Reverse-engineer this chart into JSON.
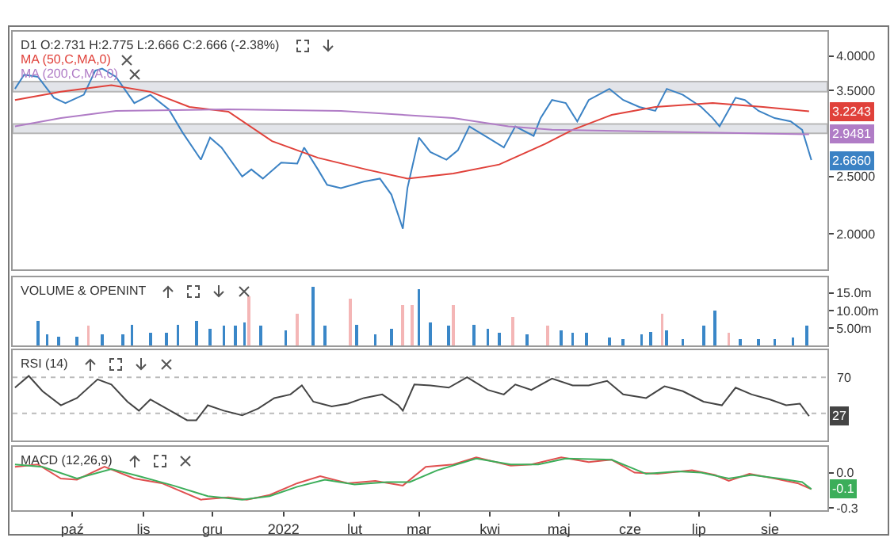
{
  "chart_data": [
    {
      "type": "line",
      "title": "D1 O:2.731 H:2.775 L:2.666 C:2.666 (-2.38%)",
      "log": true,
      "legend": "top left",
      "tick_labels": "y",
      "xlim": [
        "2021-09-05",
        "2022-08-26"
      ],
      "ylim": [
        1.74,
        4.4
      ],
      "yticks": [
        {
          "value": 2,
          "label": "2.0000"
        },
        {
          "value": 2.5,
          "label": "2.5000"
        },
        {
          "value": 3.5,
          "label": "3.5000"
        },
        {
          "value": 4,
          "label": "4.0000"
        }
      ],
      "bands": [
        {
          "axis": "y",
          "from": 2.96,
          "to": 3.07,
          "color": "#d6dae0"
        },
        {
          "axis": "y",
          "from": 3.48,
          "to": 3.62,
          "color": "#d6dae0"
        }
      ],
      "series": [
        {
          "color": "#3b82c4",
          "x": [
            "2021-09-06",
            "2021-09-10",
            "2021-09-16",
            "2021-09-23",
            "2021-09-28",
            "2021-10-06",
            "2021-10-11",
            "2021-10-14",
            "2021-10-20",
            "2021-10-28",
            "2021-11-04",
            "2021-11-12",
            "2021-11-18",
            "2021-11-26",
            "2021-11-30",
            "2021-12-05",
            "2021-12-14",
            "2021-12-18",
            "2021-12-23",
            "2021-12-31",
            "2022-01-07",
            "2022-01-10",
            "2022-01-16",
            "2022-01-20",
            "2022-01-26",
            "2022-02-05",
            "2022-02-12",
            "2022-02-17",
            "2022-02-22",
            "2022-02-24",
            "2022-03-01",
            "2022-03-06",
            "2022-03-13",
            "2022-03-18",
            "2022-03-23",
            "2022-03-31",
            "2022-04-07",
            "2022-04-12",
            "2022-04-20",
            "2022-04-23",
            "2022-04-28",
            "2022-05-04",
            "2022-05-09",
            "2022-05-14",
            "2022-05-23",
            "2022-05-29",
            "2022-06-05",
            "2022-06-12",
            "2022-06-17",
            "2022-06-24",
            "2022-07-02",
            "2022-07-07",
            "2022-07-10",
            "2022-07-17",
            "2022-07-21",
            "2022-07-27",
            "2022-08-03",
            "2022-08-10",
            "2022-08-15",
            "2022-08-19"
          ],
          "values": [
            3.52,
            3.72,
            3.69,
            3.4,
            3.33,
            3.44,
            3.78,
            3.81,
            3.69,
            3.33,
            3.44,
            3.25,
            2.97,
            2.67,
            2.91,
            2.8,
            2.5,
            2.57,
            2.48,
            2.64,
            2.63,
            2.8,
            2.57,
            2.42,
            2.39,
            2.45,
            2.48,
            2.33,
            2.04,
            2.39,
            2.91,
            2.75,
            2.67,
            2.77,
            3.04,
            2.91,
            2.8,
            3.04,
            2.93,
            3.14,
            3.37,
            3.33,
            3.1,
            3.37,
            3.52,
            3.37,
            3.28,
            3.23,
            3.52,
            3.44,
            3.28,
            3.14,
            3.04,
            3.4,
            3.37,
            3.23,
            3.14,
            3.1,
            3.0,
            2.666
          ],
          "value_labels": [
            null,
            null,
            null,
            null,
            null,
            null,
            null,
            null,
            null,
            null,
            null,
            null,
            null,
            null,
            null,
            null,
            null,
            null,
            null,
            null,
            null,
            null,
            null,
            null,
            null,
            null,
            null,
            null,
            null,
            null,
            null,
            null,
            null,
            null,
            null,
            null,
            null,
            null,
            null,
            null,
            null,
            null,
            null,
            null,
            null,
            null,
            null,
            null,
            null,
            null,
            null,
            null,
            null,
            null,
            null,
            null,
            null,
            null,
            null,
            "2.6660"
          ]
        },
        {
          "name": "MA (50,C,MA,0)",
          "color": "#e0413a",
          "x": [
            "2021-09-06",
            "2021-09-26",
            "2021-10-18",
            "2021-11-04",
            "2021-11-21",
            "2021-12-08",
            "2021-12-27",
            "2022-01-16",
            "2022-02-06",
            "2022-02-24",
            "2022-03-16",
            "2022-04-05",
            "2022-04-25",
            "2022-05-07",
            "2022-05-24",
            "2022-06-12",
            "2022-07-07",
            "2022-07-29",
            "2022-08-18"
          ],
          "values": [
            3.37,
            3.48,
            3.57,
            3.48,
            3.28,
            3.22,
            2.87,
            2.69,
            2.57,
            2.48,
            2.53,
            2.62,
            2.84,
            3.0,
            3.18,
            3.28,
            3.33,
            3.28,
            3.2243
          ],
          "value_labels": [
            null,
            null,
            null,
            null,
            null,
            null,
            null,
            null,
            null,
            null,
            null,
            null,
            null,
            null,
            null,
            null,
            null,
            null,
            "3.2243"
          ]
        },
        {
          "name": "MA (200,C,MA,0)",
          "color": "#b07cc6",
          "x": [
            "2021-09-06",
            "2021-09-26",
            "2021-10-20",
            "2021-12-08",
            "2022-01-26",
            "2022-03-16",
            "2022-04-09",
            "2022-04-28",
            "2022-08-18"
          ],
          "values": [
            3.04,
            3.14,
            3.23,
            3.25,
            3.23,
            3.14,
            3.04,
            3.0,
            2.9481
          ],
          "value_labels": [
            null,
            null,
            null,
            null,
            null,
            null,
            null,
            null,
            "2.9481"
          ]
        }
      ]
    },
    {
      "type": "bar",
      "title": "VOLUME & OPENINT",
      "tick_labels": "y",
      "xlim": [
        "2021-09-05",
        "2022-08-26"
      ],
      "ylim": [
        0,
        19.5
      ],
      "yticks": [
        {
          "value": 5,
          "label": "5.00m"
        },
        {
          "value": 10,
          "label": "10.00m"
        },
        {
          "value": 15,
          "label": "15.0m"
        }
      ],
      "x": [
        "2021-09-16",
        "2021-09-20",
        "2021-09-25",
        "2021-10-03",
        "2021-10-08",
        "2021-10-14",
        "2021-10-23",
        "2021-10-27",
        "2021-11-04",
        "2021-11-11",
        "2021-11-16",
        "2021-11-24",
        "2021-11-30",
        "2021-12-06",
        "2021-12-11",
        "2021-12-15",
        "2021-12-17",
        "2021-12-22",
        "2022-01-02",
        "2022-01-07",
        "2022-01-14",
        "2022-01-19",
        "2022-01-30",
        "2022-02-02",
        "2022-02-10",
        "2022-02-17",
        "2022-02-22",
        "2022-02-26",
        "2022-03-01",
        "2022-03-06",
        "2022-03-14",
        "2022-03-16",
        "2022-03-25",
        "2022-03-31",
        "2022-04-05",
        "2022-04-11",
        "2022-04-17",
        "2022-04-26",
        "2022-05-02",
        "2022-05-07",
        "2022-05-13",
        "2022-05-23",
        "2022-05-29",
        "2022-06-06",
        "2022-06-10",
        "2022-06-15",
        "2022-06-17",
        "2022-06-24",
        "2022-07-03",
        "2022-07-08",
        "2022-07-14",
        "2022-07-19",
        "2022-07-27",
        "2022-08-03",
        "2022-08-11",
        "2022-08-17"
      ],
      "values": [
        7.0,
        3.1,
        2.6,
        2.6,
        5.6,
        3.1,
        3.1,
        6.0,
        3.6,
        3.6,
        6.0,
        7.0,
        4.8,
        5.6,
        5.6,
        6.5,
        14.1,
        5.6,
        4.3,
        9.0,
        16.7,
        5.6,
        13.3,
        6.0,
        3.1,
        4.8,
        11.6,
        11.6,
        16.2,
        6.5,
        5.6,
        11.6,
        6.0,
        4.8,
        3.6,
        8.2,
        3.1,
        5.6,
        4.3,
        3.6,
        3.6,
        2.2,
        1.9,
        3.1,
        3.9,
        9.0,
        4.3,
        1.9,
        5.6,
        9.9,
        3.6,
        1.9,
        1.9,
        1.9,
        2.2,
        5.6
      ],
      "colors": [
        "#3a87c8",
        "#3a87c8",
        "#3a87c8",
        "#3a87c8",
        "#f4b6b6",
        "#3a87c8",
        "#3a87c8",
        "#3a87c8",
        "#3a87c8",
        "#3a87c8",
        "#3a87c8",
        "#3a87c8",
        "#3a87c8",
        "#3a87c8",
        "#3a87c8",
        "#3a87c8",
        "#f4b6b6",
        "#3a87c8",
        "#3a87c8",
        "#f4b6b6",
        "#3a87c8",
        "#3a87c8",
        "#f4b6b6",
        "#3a87c8",
        "#3a87c8",
        "#3a87c8",
        "#f4b6b6",
        "#f4b6b6",
        "#3a87c8",
        "#3a87c8",
        "#3a87c8",
        "#f4b6b6",
        "#3a87c8",
        "#3a87c8",
        "#3a87c8",
        "#f4b6b6",
        "#3a87c8",
        "#f4b6b6",
        "#3a87c8",
        "#3a87c8",
        "#3a87c8",
        "#3a87c8",
        "#3a87c8",
        "#3a87c8",
        "#3a87c8",
        "#f4b6b6",
        "#3a87c8",
        "#3a87c8",
        "#3a87c8",
        "#3a87c8",
        "#f4b6b6",
        "#3a87c8",
        "#3a87c8",
        "#3a87c8",
        "#3a87c8",
        "#3a87c8"
      ]
    },
    {
      "type": "line",
      "title": "RSI (14)",
      "tick_labels": "y",
      "xlim": [
        "2021-09-05",
        "2022-08-26"
      ],
      "ylim": [
        0,
        100
      ],
      "ref_lines": [
        {
          "axis": "y",
          "value": 30,
          "color": "#bbbbbb",
          "line_style": "dotted"
        },
        {
          "axis": "y",
          "value": 70,
          "label": "70",
          "color": "#bbbbbb",
          "line_style": "dotted"
        }
      ],
      "x": [
        "2021-09-06",
        "2021-09-12",
        "2021-09-18",
        "2021-09-26",
        "2021-10-03",
        "2021-10-12",
        "2021-10-18",
        "2021-10-25",
        "2021-10-30",
        "2021-11-04",
        "2021-11-11",
        "2021-11-20",
        "2021-11-24",
        "2021-11-29",
        "2021-12-06",
        "2021-12-14",
        "2021-12-21",
        "2021-12-28",
        "2022-01-04",
        "2022-01-09",
        "2022-01-14",
        "2022-01-22",
        "2022-01-29",
        "2022-02-05",
        "2022-02-13",
        "2022-02-20",
        "2022-02-22",
        "2022-02-27",
        "2022-03-06",
        "2022-03-14",
        "2022-03-22",
        "2022-03-31",
        "2022-04-07",
        "2022-04-12",
        "2022-04-19",
        "2022-04-28",
        "2022-05-07",
        "2022-05-14",
        "2022-05-22",
        "2022-05-29",
        "2022-06-08",
        "2022-06-16",
        "2022-06-24",
        "2022-07-03",
        "2022-07-11",
        "2022-07-17",
        "2022-07-24",
        "2022-08-01",
        "2022-08-08",
        "2022-08-14",
        "2022-08-18"
      ],
      "series": [
        {
          "color": "#444444",
          "values": [
            58.5,
            71.5,
            54.6,
            39,
            47,
            67.7,
            62,
            43,
            33,
            45.4,
            35.4,
            22.4,
            22.4,
            39,
            33,
            27.8,
            35.4,
            47,
            51,
            61,
            43,
            37.7,
            40.8,
            47,
            51,
            39,
            33,
            62,
            61,
            58.5,
            70,
            56,
            51,
            62,
            56,
            68.5,
            61,
            61,
            66,
            51,
            47,
            60,
            54.6,
            43,
            39,
            58.5,
            51,
            45.4,
            39,
            40.8,
            27
          ],
          "value_labels": [
            null,
            null,
            null,
            null,
            null,
            null,
            null,
            null,
            null,
            null,
            null,
            null,
            null,
            null,
            null,
            null,
            null,
            null,
            null,
            null,
            null,
            null,
            null,
            null,
            null,
            null,
            null,
            null,
            null,
            null,
            null,
            null,
            null,
            null,
            null,
            null,
            null,
            null,
            null,
            null,
            null,
            null,
            null,
            null,
            null,
            null,
            null,
            null,
            null,
            null,
            "27"
          ]
        }
      ]
    },
    {
      "type": "line",
      "title": "MACD (12,26,9)",
      "xlim": [
        "2021-09-05",
        "2022-08-26"
      ],
      "ylim": [
        -0.32,
        0.22
      ],
      "xticks": [
        {
          "value": "2021-10-01",
          "label": "paź"
        },
        {
          "value": "2021-11-01",
          "label": "lis"
        },
        {
          "value": "2021-12-01",
          "label": "gru"
        },
        {
          "value": "2022-01-01",
          "label": "2022"
        },
        {
          "value": "2022-02-01",
          "label": "lut"
        },
        {
          "value": "2022-03-01",
          "label": "mar"
        },
        {
          "value": "2022-04-01",
          "label": "kwi"
        },
        {
          "value": "2022-05-01",
          "label": "maj"
        },
        {
          "value": "2022-06-01",
          "label": "cze"
        },
        {
          "value": "2022-07-01",
          "label": "lip"
        },
        {
          "value": "2022-08-01",
          "label": "sie"
        }
      ],
      "yticks": [
        {
          "value": -0.3,
          "label": "-0.3"
        },
        {
          "value": 0,
          "label": "0.0"
        }
      ],
      "series": [
        {
          "color": "#e05050",
          "x": [
            "2021-09-06",
            "2021-09-16",
            "2021-09-26",
            "2021-10-03",
            "2021-10-15",
            "2021-10-28",
            "2021-11-09",
            "2021-11-26",
            "2021-12-08",
            "2021-12-16",
            "2021-12-26",
            "2022-01-07",
            "2022-01-17",
            "2022-01-29",
            "2022-02-10",
            "2022-02-22",
            "2022-03-04",
            "2022-03-16",
            "2022-03-26",
            "2022-04-10",
            "2022-04-19",
            "2022-05-02",
            "2022-05-14",
            "2022-05-24",
            "2022-06-03",
            "2022-06-13",
            "2022-06-28",
            "2022-07-08",
            "2022-07-14",
            "2022-07-23",
            "2022-08-03",
            "2022-08-13",
            "2022-08-19"
          ],
          "values": [
            0.05,
            0.07,
            -0.05,
            -0.06,
            0.05,
            -0.05,
            -0.09,
            -0.23,
            -0.21,
            -0.23,
            -0.19,
            -0.09,
            -0.03,
            -0.09,
            -0.07,
            -0.11,
            0.05,
            0.07,
            0.13,
            0.06,
            0.07,
            0.13,
            0.09,
            0.11,
            0,
            -0.01,
            0.02,
            -0.02,
            -0.07,
            -0.01,
            -0.05,
            -0.09,
            -0.14
          ]
        },
        {
          "color": "#3cae5a",
          "x": [
            "2021-09-06",
            "2021-09-18",
            "2021-10-03",
            "2021-10-18",
            "2021-10-30",
            "2021-11-14",
            "2021-11-29",
            "2021-12-14",
            "2021-12-26",
            "2022-01-07",
            "2022-01-19",
            "2022-02-01",
            "2022-02-15",
            "2022-02-25",
            "2022-03-09",
            "2022-03-26",
            "2022-04-10",
            "2022-04-22",
            "2022-05-04",
            "2022-05-24",
            "2022-06-08",
            "2022-06-22",
            "2022-07-02",
            "2022-07-14",
            "2022-07-24",
            "2022-08-05",
            "2022-08-15",
            "2022-08-19"
          ],
          "values": [
            0.07,
            0.05,
            -0.05,
            0.03,
            -0.03,
            -0.11,
            -0.2,
            -0.23,
            -0.2,
            -0.12,
            -0.06,
            -0.1,
            -0.08,
            -0.08,
            0.02,
            0.12,
            0.07,
            0.07,
            0.12,
            0.11,
            -0.01,
            0.01,
            0,
            -0.05,
            -0.02,
            -0.05,
            -0.08,
            -0.14
          ],
          "value_labels": [
            null,
            null,
            null,
            null,
            null,
            null,
            null,
            null,
            null,
            null,
            null,
            null,
            null,
            null,
            null,
            null,
            null,
            null,
            null,
            null,
            null,
            null,
            null,
            null,
            null,
            null,
            null,
            "-0.1"
          ]
        }
      ]
    }
  ]
}
